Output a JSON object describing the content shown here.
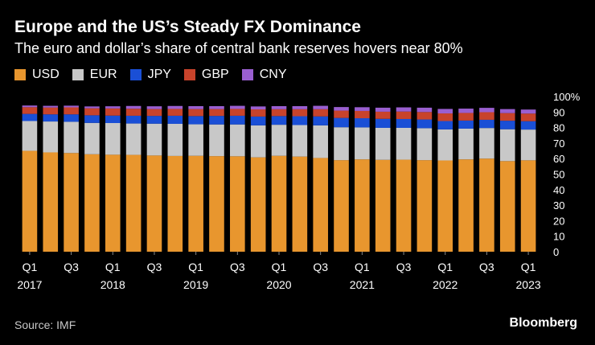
{
  "title": "Europe and the US’s Steady FX Dominance",
  "subtitle": "The euro and dollar’s share of central bank reserves hovers near 80%",
  "source": "Source: IMF",
  "brand": "Bloomberg",
  "chart_data": {
    "type": "bar",
    "stacked": true,
    "x_ticks": [
      {
        "index": 0,
        "quarter": "Q1",
        "year": "2017"
      },
      {
        "index": 2,
        "quarter": "Q3",
        "year": ""
      },
      {
        "index": 4,
        "quarter": "Q1",
        "year": "2018"
      },
      {
        "index": 6,
        "quarter": "Q3",
        "year": ""
      },
      {
        "index": 8,
        "quarter": "Q1",
        "year": "2019"
      },
      {
        "index": 10,
        "quarter": "Q3",
        "year": ""
      },
      {
        "index": 12,
        "quarter": "Q1",
        "year": "2020"
      },
      {
        "index": 14,
        "quarter": "Q3",
        "year": ""
      },
      {
        "index": 16,
        "quarter": "Q1",
        "year": "2021"
      },
      {
        "index": 18,
        "quarter": "Q3",
        "year": ""
      },
      {
        "index": 20,
        "quarter": "Q1",
        "year": "2022"
      },
      {
        "index": 22,
        "quarter": "Q3",
        "year": ""
      },
      {
        "index": 24,
        "quarter": "Q1",
        "year": "2023"
      }
    ],
    "categories": [
      "2017 Q1",
      "2017 Q2",
      "2017 Q3",
      "2017 Q4",
      "2018 Q1",
      "2018 Q2",
      "2018 Q3",
      "2018 Q4",
      "2019 Q1",
      "2019 Q2",
      "2019 Q3",
      "2019 Q4",
      "2020 Q1",
      "2020 Q2",
      "2020 Q3",
      "2020 Q4",
      "2021 Q1",
      "2021 Q2",
      "2021 Q3",
      "2021 Q4",
      "2022 Q1",
      "2022 Q2",
      "2022 Q3",
      "2022 Q4",
      "2023 Q1"
    ],
    "series": [
      {
        "name": "USD",
        "color": "#e8962e",
        "values": [
          65.0,
          64.0,
          63.6,
          62.8,
          62.5,
          62.4,
          62.0,
          61.7,
          61.8,
          61.6,
          61.5,
          60.8,
          61.8,
          61.3,
          60.4,
          59.0,
          59.5,
          59.2,
          59.3,
          59.0,
          58.8,
          59.5,
          60.0,
          58.4,
          58.9
        ]
      },
      {
        "name": "EUR",
        "color": "#c8c8c8",
        "values": [
          19.2,
          19.9,
          20.1,
          20.2,
          20.4,
          20.2,
          20.5,
          20.7,
          20.3,
          20.4,
          20.5,
          20.6,
          20.0,
          20.3,
          21.0,
          21.2,
          20.6,
          20.6,
          20.5,
          20.6,
          20.0,
          19.8,
          19.7,
          20.5,
          19.8
        ]
      },
      {
        "name": "JPY",
        "color": "#1a4fd6",
        "values": [
          4.6,
          4.6,
          4.8,
          4.9,
          4.8,
          5.0,
          5.0,
          5.2,
          5.3,
          5.5,
          5.6,
          5.7,
          5.6,
          5.7,
          5.8,
          6.0,
          5.9,
          5.8,
          5.7,
          5.6,
          5.4,
          5.2,
          5.3,
          5.5,
          5.4
        ]
      },
      {
        "name": "GBP",
        "color": "#c8432b",
        "values": [
          4.3,
          4.4,
          4.5,
          4.5,
          4.6,
          4.5,
          4.4,
          4.4,
          4.5,
          4.4,
          4.4,
          4.6,
          4.4,
          4.5,
          4.6,
          4.7,
          4.7,
          4.6,
          4.8,
          4.8,
          4.9,
          4.9,
          4.9,
          4.9,
          4.9
        ]
      },
      {
        "name": "CNY",
        "color": "#9a5fd0",
        "values": [
          1.1,
          1.1,
          1.1,
          1.2,
          1.4,
          1.8,
          1.8,
          1.9,
          1.9,
          1.9,
          2.0,
          1.9,
          2.0,
          2.0,
          2.2,
          2.3,
          2.4,
          2.6,
          2.7,
          2.8,
          2.9,
          2.8,
          2.8,
          2.6,
          2.6
        ]
      }
    ],
    "y_ticks": [
      "0",
      "10",
      "20",
      "30",
      "40",
      "50",
      "60",
      "70",
      "80",
      "90",
      "100%"
    ],
    "ylim": [
      0,
      100
    ],
    "legend": "top-left"
  }
}
